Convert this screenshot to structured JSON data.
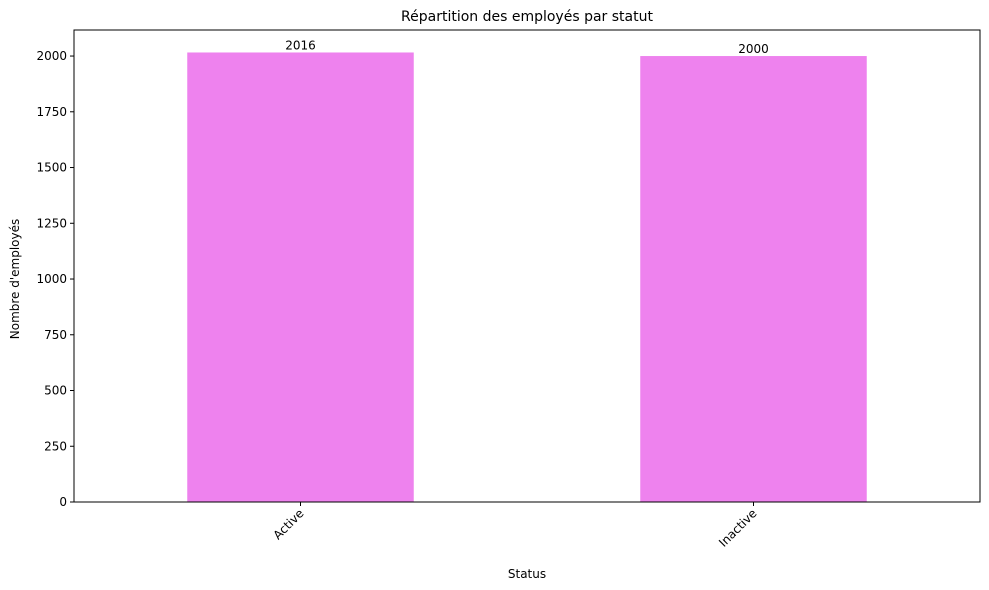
{
  "chart_data": {
    "type": "bar",
    "title": "Répartition des employés par statut",
    "xlabel": "Status",
    "ylabel": "Nombre d'employés",
    "categories": [
      "Active",
      "Inactive"
    ],
    "values": [
      2016,
      2000
    ],
    "data_labels": [
      "2016",
      "2000"
    ],
    "yticks": [
      0,
      250,
      500,
      750,
      1000,
      1250,
      1500,
      1750,
      2000
    ],
    "ylim": [
      0,
      2116.8
    ],
    "bar_color": "#ee82ee",
    "grid": false,
    "legend": "none"
  }
}
